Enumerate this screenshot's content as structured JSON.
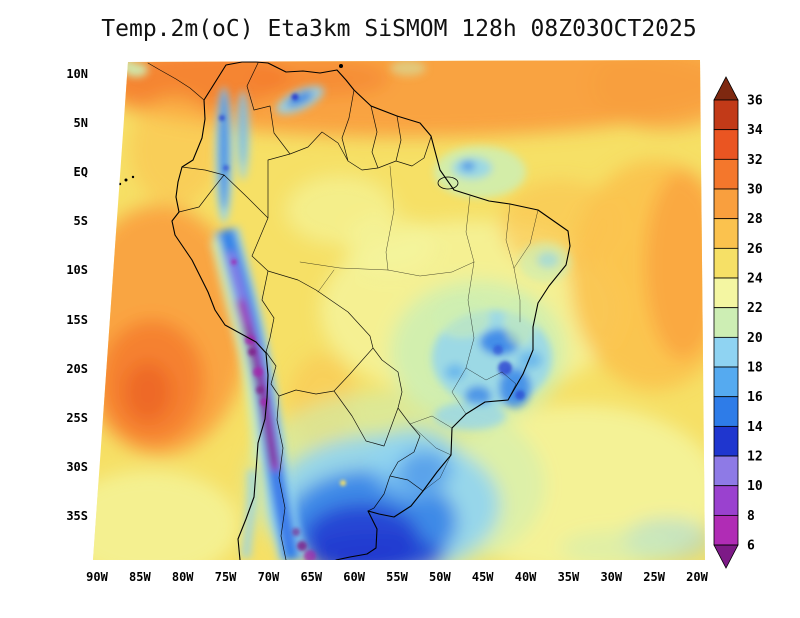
{
  "title": "Temp.2m(oC) Eta3km SiSMOM 128h 08Z03OCT2025",
  "axes": {
    "y_ticks": [
      "10N",
      "5N",
      "EQ",
      "5S",
      "10S",
      "15S",
      "20S",
      "25S",
      "30S",
      "35S"
    ],
    "x_ticks": [
      "90W",
      "85W",
      "80W",
      "75W",
      "70W",
      "65W",
      "60W",
      "55W",
      "50W",
      "45W",
      "40W",
      "35W",
      "30W",
      "25W",
      "20W"
    ]
  },
  "colorbar": {
    "unit": "oC",
    "labels": [
      "36",
      "34",
      "32",
      "30",
      "28",
      "26",
      "24",
      "22",
      "20",
      "18",
      "16",
      "14",
      "12",
      "10",
      "8",
      "6"
    ],
    "colors_top_to_bottom": [
      "#7e2810",
      "#c23a18",
      "#ea5522",
      "#f4772c",
      "#f99f3e",
      "#fbc24e",
      "#f6e066",
      "#f4f6a2",
      "#cdeeb4",
      "#8fd3f2",
      "#55aaf0",
      "#2e7ce8",
      "#1f36cf",
      "#8e7ae6",
      "#9a41cf",
      "#b02cb5",
      "#7d1a87"
    ]
  },
  "chart_data": {
    "type": "heatmap",
    "title": "Temp.2m(oC) Eta3km SiSMOM 128h 08Z03OCT2025",
    "variable": "2-meter air temperature",
    "units": "oC",
    "model": "Eta3km SiSMOM",
    "forecast_hour": 128,
    "init_time": "08Z03OCT2025",
    "region": "South America",
    "x_range": [
      "90W",
      "20W"
    ],
    "y_range": [
      "35S",
      "10N"
    ],
    "contour_levels": [
      6,
      8,
      10,
      12,
      14,
      16,
      18,
      20,
      22,
      24,
      26,
      28,
      30,
      32,
      34,
      36
    ],
    "legend_position": "right",
    "grid": false,
    "features": [
      {
        "region": "Andes cordillera strip (~70W, 5N to 35S)",
        "value_range": "below 6 to 12"
      },
      {
        "region": "Altiplano Peru-Bolivia-Chile (15S-25S)",
        "value_range": "below 6 to 8"
      },
      {
        "region": "Amazon basin lowlands",
        "value_range": "24 to 28"
      },
      {
        "region": "Caribbean coast / northern South America",
        "value_range": "26 to 30"
      },
      {
        "region": "Subtropical Pacific west of 75W (10S-25S)",
        "value_range": "26 to 32"
      },
      {
        "region": "Southeast Brazil highlands (45-50W, 18-24S)",
        "value_range": "12 to 20"
      },
      {
        "region": "Colombian Andes (75W, 10N-2S)",
        "value_range": "10 to 18"
      },
      {
        "region": "Southern Argentina / Uruguay / Rio Grande do Sul",
        "value_range": "10 to 18"
      },
      {
        "region": "Far south near 35S-39S (cold core)",
        "value_range": "8 to 14"
      },
      {
        "region": "Tropical Atlantic east of Brazil",
        "value_range": "24 to 28"
      },
      {
        "region": "Guiana highlands",
        "value_range": "18 to 22"
      }
    ]
  }
}
